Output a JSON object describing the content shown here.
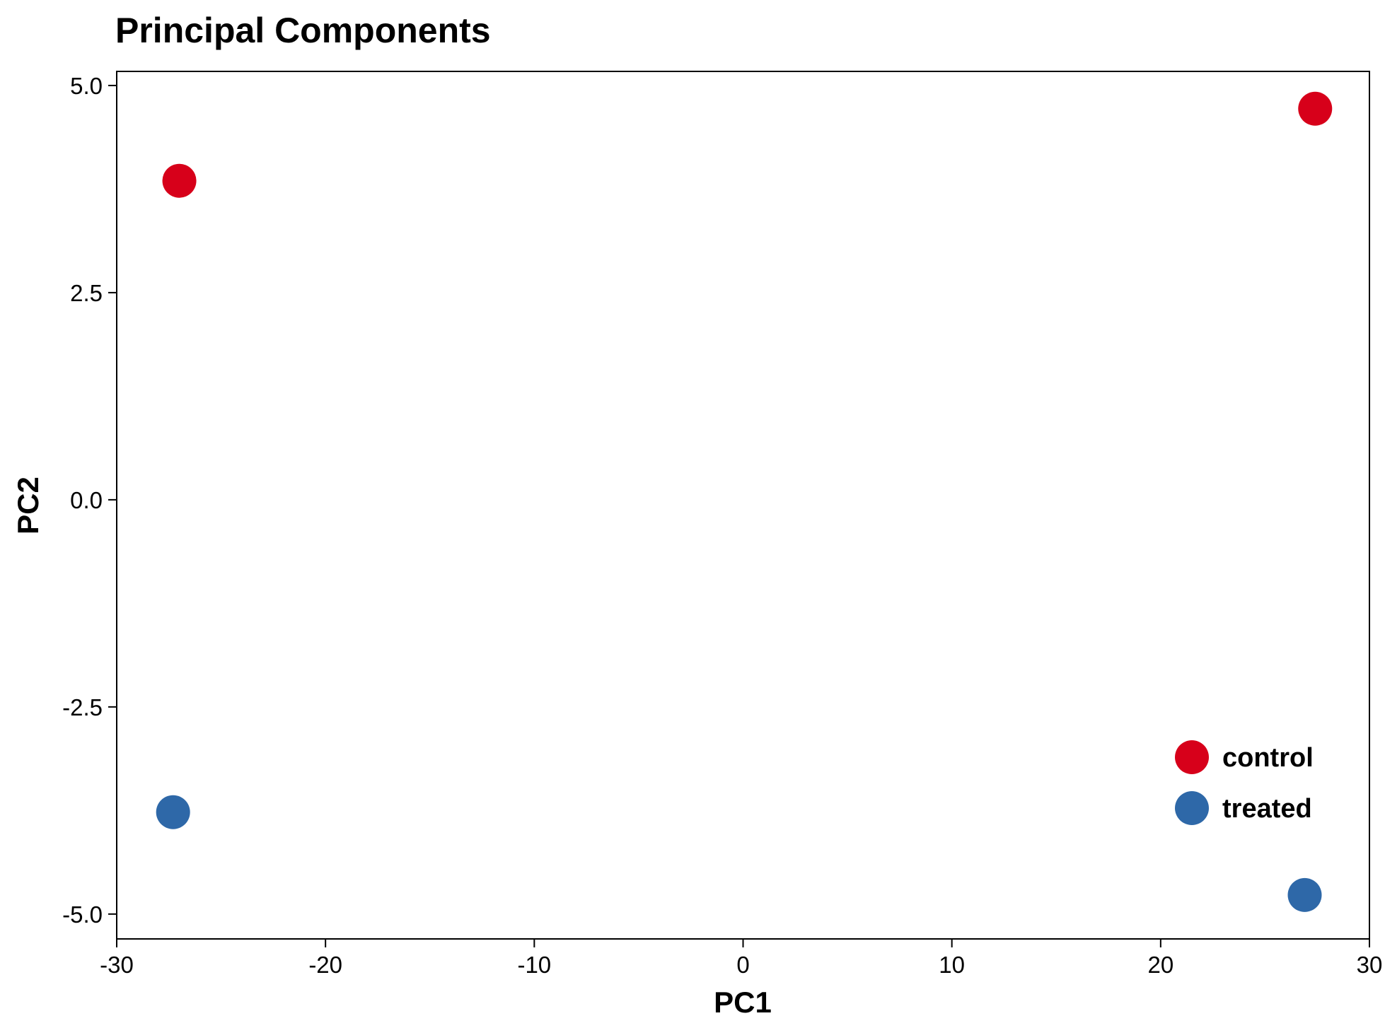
{
  "chart_data": {
    "type": "scatter",
    "title": "Principal Components",
    "xlabel": "PC1",
    "ylabel": "PC2",
    "xlim": [
      -30,
      30
    ],
    "ylim": [
      -5.3,
      5.17
    ],
    "xticks": [
      -30,
      -20,
      -10,
      0,
      10,
      20,
      30
    ],
    "xtick_labels": [
      "-30",
      "-20",
      "-10",
      "0",
      "10",
      "20",
      "30"
    ],
    "yticks": [
      5.0,
      2.5,
      0.0,
      -2.5,
      -5.0
    ],
    "ytick_labels": [
      "5.0",
      "2.5",
      "0.0",
      "-2.5",
      "-5.0"
    ],
    "grid": false,
    "legend_position": "bottom-right, inside plot",
    "series": [
      {
        "name": "control",
        "color": "#d7001a",
        "points": [
          {
            "x": -27.0,
            "y": 3.85
          },
          {
            "x": 27.4,
            "y": 4.72
          }
        ]
      },
      {
        "name": "treated",
        "color": "#2e68a8",
        "points": [
          {
            "x": -27.3,
            "y": -3.77
          },
          {
            "x": 26.9,
            "y": -4.77
          }
        ]
      }
    ]
  }
}
